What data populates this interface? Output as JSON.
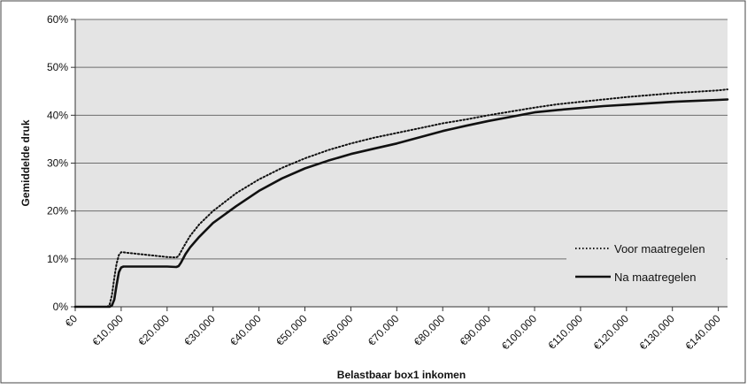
{
  "chart_data": {
    "type": "line",
    "title": "",
    "xlabel": "Belastbaar box1 inkomen",
    "ylabel": "Gemiddelde druk",
    "xlim": [
      0,
      142000
    ],
    "ylim": [
      0,
      60
    ],
    "y_ticks": [
      0,
      10,
      20,
      30,
      40,
      50,
      60
    ],
    "y_tick_labels": [
      "0%",
      "10%",
      "20%",
      "30%",
      "40%",
      "50%",
      "60%"
    ],
    "x_ticks": [
      0,
      10000,
      20000,
      30000,
      40000,
      50000,
      60000,
      70000,
      80000,
      90000,
      100000,
      110000,
      120000,
      130000,
      140000
    ],
    "x_tick_labels": [
      "€0",
      "€10.000",
      "€20.000",
      "€30.000",
      "€40.000",
      "€50.000",
      "€60.000",
      "€70.000",
      "€80.000",
      "€90.000",
      "€100.000",
      "€110.000",
      "€120.000",
      "€130.000",
      "€140.000"
    ],
    "grid": "horizontal",
    "plot_background": "#e4e4e4",
    "legend_position": "right",
    "series": [
      {
        "name": "Voor maatregelen",
        "style": "dotted",
        "color": "#111111",
        "x": [
          0,
          5000,
          7000,
          7500,
          8000,
          8500,
          9000,
          9500,
          10000,
          10500,
          11000,
          12000,
          14000,
          16000,
          18000,
          20000,
          22000,
          22500,
          23000,
          24000,
          25000,
          27000,
          30000,
          35000,
          40000,
          45000,
          50000,
          55000,
          60000,
          65000,
          70000,
          75000,
          80000,
          85000,
          90000,
          95000,
          100000,
          105000,
          110000,
          115000,
          120000,
          125000,
          130000,
          135000,
          140000,
          142000
        ],
        "y": [
          0,
          0,
          0,
          0.5,
          2.5,
          6,
          9,
          10.8,
          11.4,
          11.4,
          11.3,
          11.2,
          11.0,
          10.8,
          10.6,
          10.4,
          10.3,
          10.6,
          11.5,
          13.2,
          14.8,
          17.2,
          20.0,
          23.7,
          26.6,
          29.0,
          31.0,
          32.7,
          34.1,
          35.3,
          36.3,
          37.3,
          38.3,
          39.1,
          40.0,
          40.8,
          41.6,
          42.3,
          42.8,
          43.3,
          43.8,
          44.2,
          44.6,
          44.9,
          45.2,
          45.4
        ]
      },
      {
        "name": "Na maatregelen",
        "style": "solid",
        "color": "#111111",
        "x": [
          0,
          5000,
          7000,
          7500,
          8000,
          8500,
          9000,
          9500,
          10000,
          10500,
          11000,
          12000,
          14000,
          16000,
          18000,
          20000,
          22000,
          22500,
          23000,
          24000,
          25000,
          27000,
          30000,
          35000,
          40000,
          45000,
          50000,
          55000,
          60000,
          65000,
          70000,
          75000,
          80000,
          85000,
          90000,
          95000,
          100000,
          105000,
          110000,
          115000,
          120000,
          125000,
          130000,
          135000,
          140000,
          142000
        ],
        "y": [
          0,
          0,
          0,
          0,
          0.3,
          1.5,
          4.5,
          7.2,
          8.2,
          8.4,
          8.4,
          8.4,
          8.4,
          8.4,
          8.4,
          8.4,
          8.3,
          8.5,
          9.2,
          11.0,
          12.4,
          14.6,
          17.5,
          21.0,
          24.2,
          26.8,
          28.9,
          30.5,
          31.9,
          33.0,
          34.1,
          35.4,
          36.7,
          37.8,
          38.8,
          39.7,
          40.6,
          41.1,
          41.5,
          41.9,
          42.2,
          42.5,
          42.8,
          43.0,
          43.2,
          43.3
        ]
      }
    ]
  }
}
